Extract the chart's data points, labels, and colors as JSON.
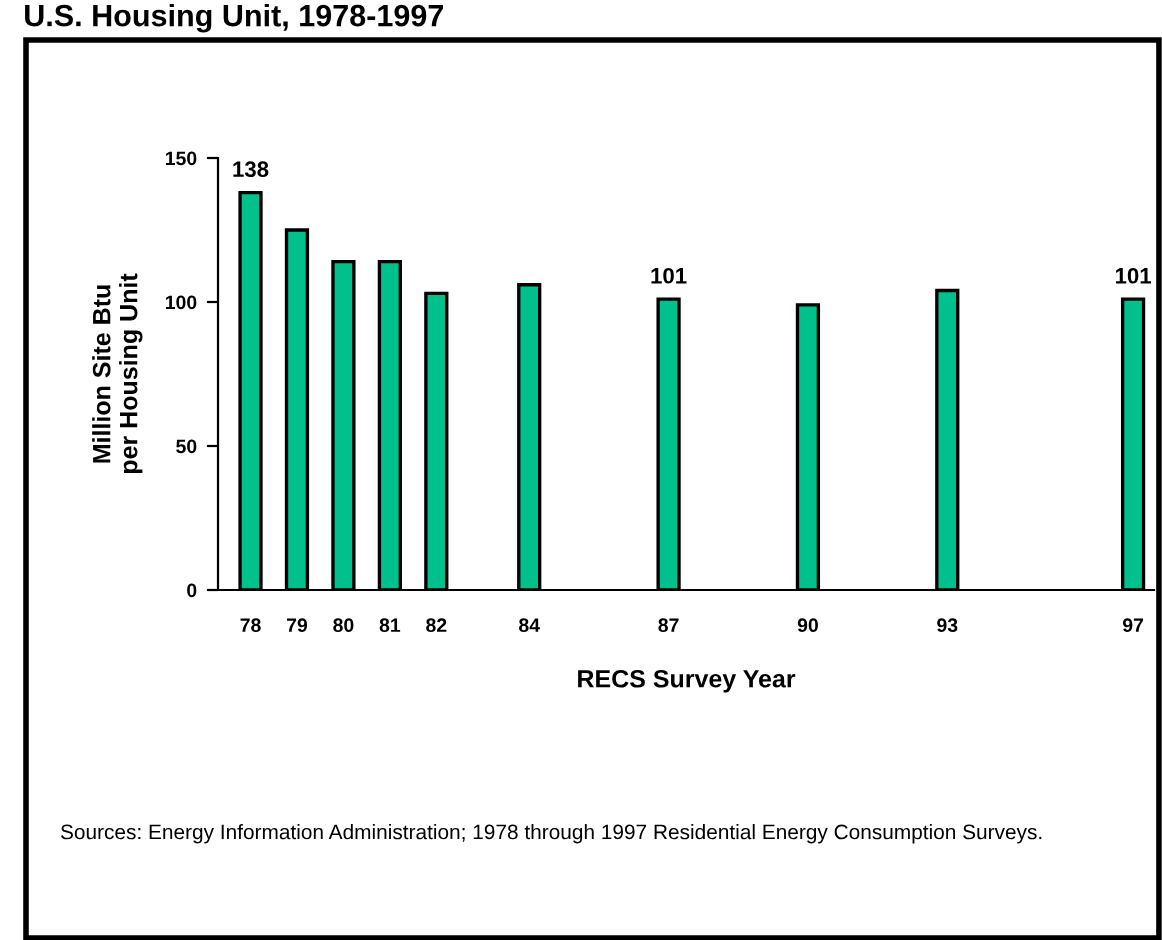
{
  "chart_data": {
    "type": "bar",
    "title": "U.S. Housing Unit, 1978-1997",
    "xlabel": "RECS Survey Year",
    "ylabel": "Million Site Btu\nper Housing Unit",
    "x": [
      78,
      79,
      80,
      81,
      82,
      84,
      87,
      90,
      93,
      97
    ],
    "values": [
      138,
      125,
      114,
      114,
      103,
      106,
      101,
      99,
      104,
      101
    ],
    "value_labels": [
      "138",
      null,
      null,
      null,
      null,
      null,
      "101",
      null,
      null,
      "101"
    ],
    "color": "#00c08b",
    "xlim": [
      77.3,
      97.45
    ],
    "xticks": [
      78,
      79,
      80,
      81,
      82,
      84,
      87,
      90,
      93,
      97
    ],
    "ylim": [
      0,
      150
    ],
    "yticks": [
      0,
      50,
      100,
      150
    ],
    "grid": false,
    "legend": false,
    "annotations": [
      "Sources: Energy Information Administration; 1978 through 1997 Residential Energy Consumption Surveys."
    ]
  }
}
